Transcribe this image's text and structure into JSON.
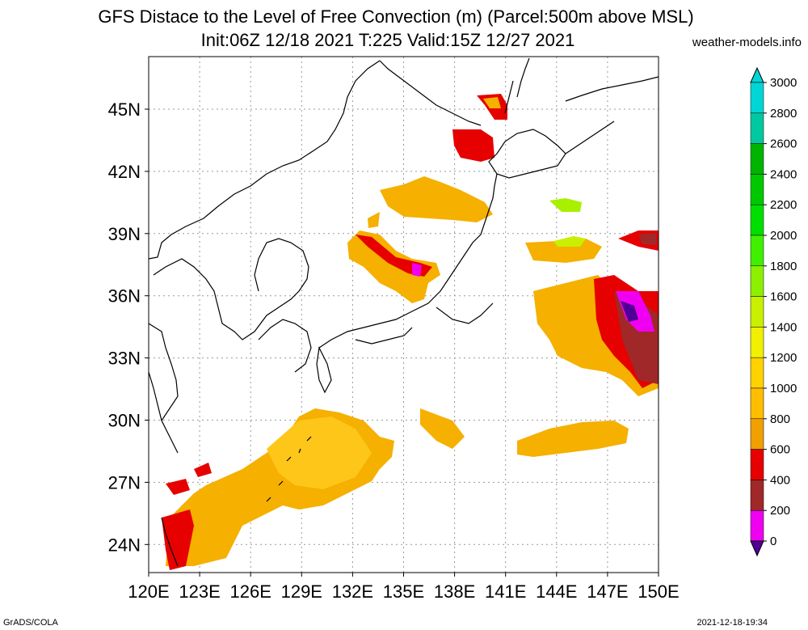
{
  "header": {
    "title_line1": "GFS Distace to the Level of Free Convection (m) (Parcel:500m above MSL)",
    "title_line2": "Init:06Z 12/18 2021 T:225 Valid:15Z 12/27 2021",
    "site": "weather-models.info"
  },
  "footer": {
    "left": "GrADS/COLA",
    "right": "2021-12-18-19:34"
  },
  "map": {
    "lon_labels": [
      "120E",
      "123E",
      "126E",
      "129E",
      "132E",
      "135E",
      "138E",
      "141E",
      "144E",
      "147E",
      "150E"
    ],
    "lat_labels": [
      "45N",
      "42N",
      "39N",
      "36N",
      "33N",
      "30N",
      "27N",
      "24N"
    ]
  },
  "colorbar": {
    "labels": [
      "3000",
      "2800",
      "2600",
      "2400",
      "2200",
      "2000",
      "1800",
      "1600",
      "1400",
      "1200",
      "1000",
      "800",
      "600",
      "400",
      "200",
      "0"
    ],
    "colors": [
      "#00d6d6",
      "#00c8a0",
      "#00b400",
      "#00c800",
      "#00e000",
      "#40f000",
      "#8cf000",
      "#c8f000",
      "#f0f000",
      "#ffd200",
      "#ffbe00",
      "#f0a000",
      "#e60000",
      "#a02828",
      "#f000f0",
      "#500096"
    ]
  }
}
